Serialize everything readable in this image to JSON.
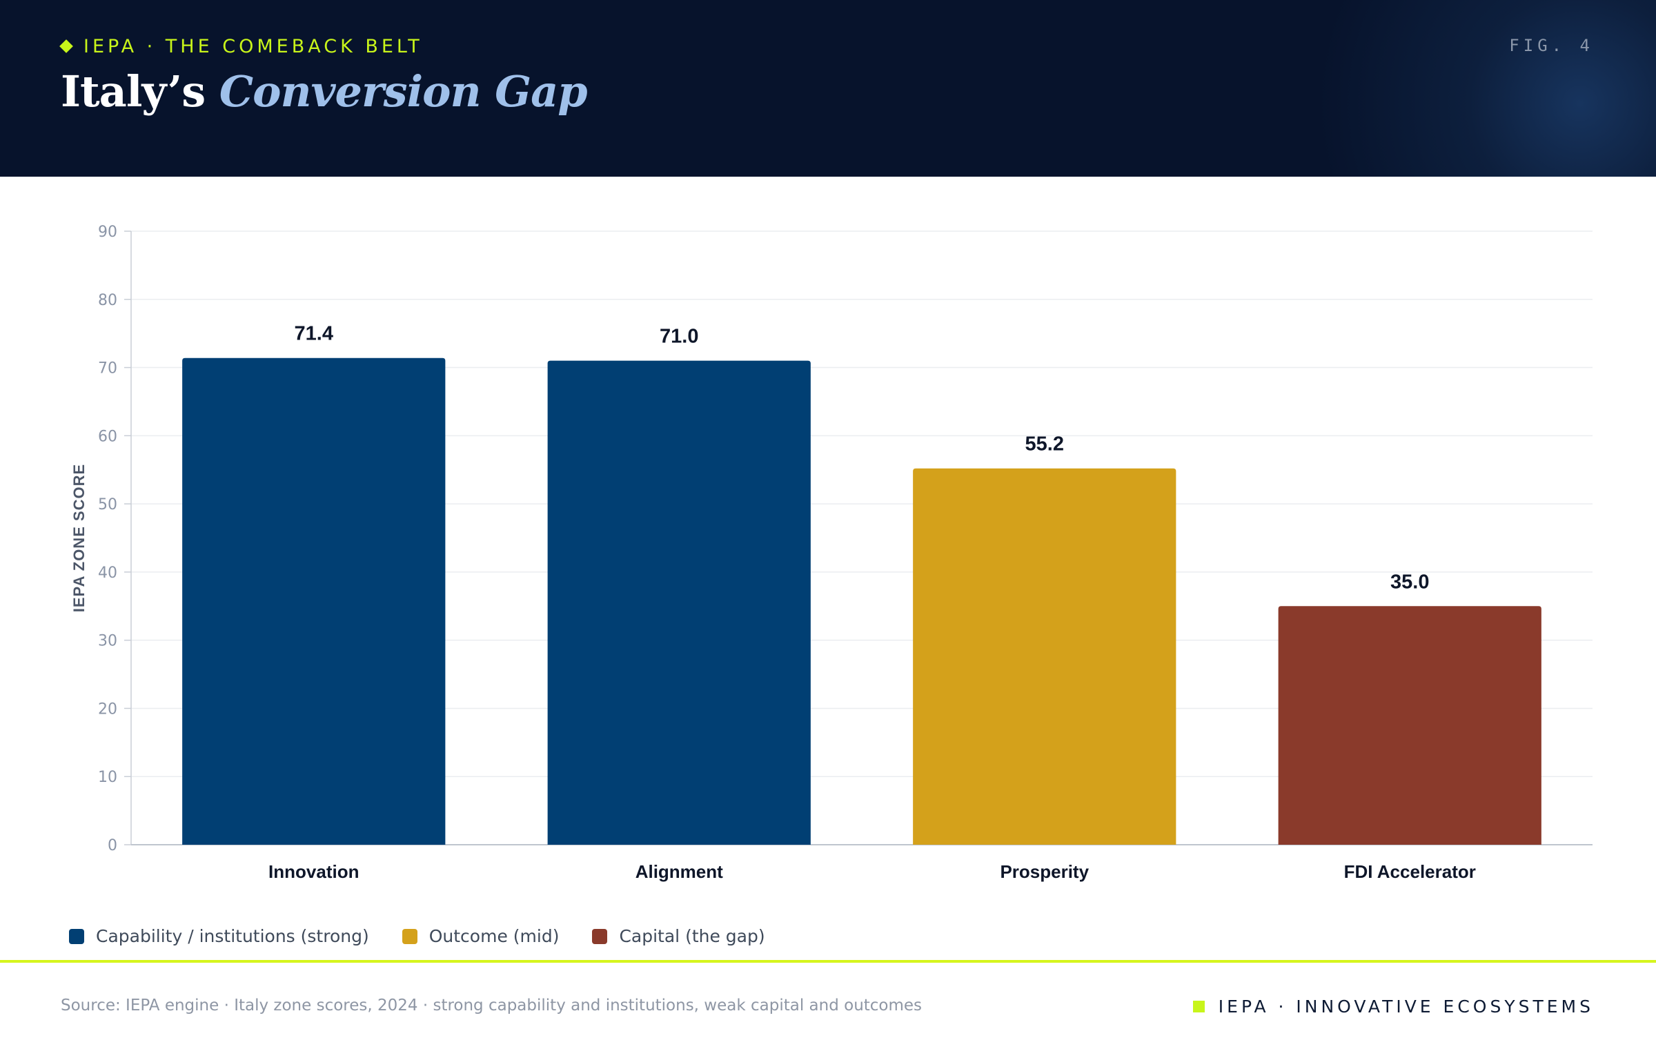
{
  "header": {
    "kicker": "IEPA · THE COMEBACK BELT",
    "title_plain": "Italy’s",
    "title_accent": "Conversion Gap",
    "figure_label": "FIG. 4",
    "diamond_icon": "diamond-icon"
  },
  "chart_data": {
    "type": "bar",
    "categories": [
      "Innovation",
      "Alignment",
      "Prosperity",
      "FDI Accelerator"
    ],
    "values": [
      71.4,
      71.0,
      55.2,
      35.0
    ],
    "value_labels": [
      "71.4",
      "71.0",
      "55.2",
      "35.0"
    ],
    "bar_colors": [
      "#013f73",
      "#013f73",
      "#d4a11b",
      "#8a3a2b"
    ],
    "ylabel": "IEPA ZONE SCORE",
    "ylim": [
      0,
      90
    ],
    "yticks": [
      0,
      10,
      20,
      30,
      40,
      50,
      60,
      70,
      80,
      90
    ],
    "grid": true,
    "legend_position": "bottom-left"
  },
  "legend": [
    {
      "label": "Capability / institutions (strong)",
      "color": "#013f73"
    },
    {
      "label": "Outcome (mid)",
      "color": "#d4a11b"
    },
    {
      "label": "Capital (the gap)",
      "color": "#8a3a2b"
    }
  ],
  "footer": {
    "source": "Source: IEPA engine · Italy zone scores, 2024 · strong capability and institutions, weak capital and outcomes",
    "brand": "IEPA · INNOVATIVE ECOSYSTEMS",
    "brand_icon": "square-icon"
  }
}
